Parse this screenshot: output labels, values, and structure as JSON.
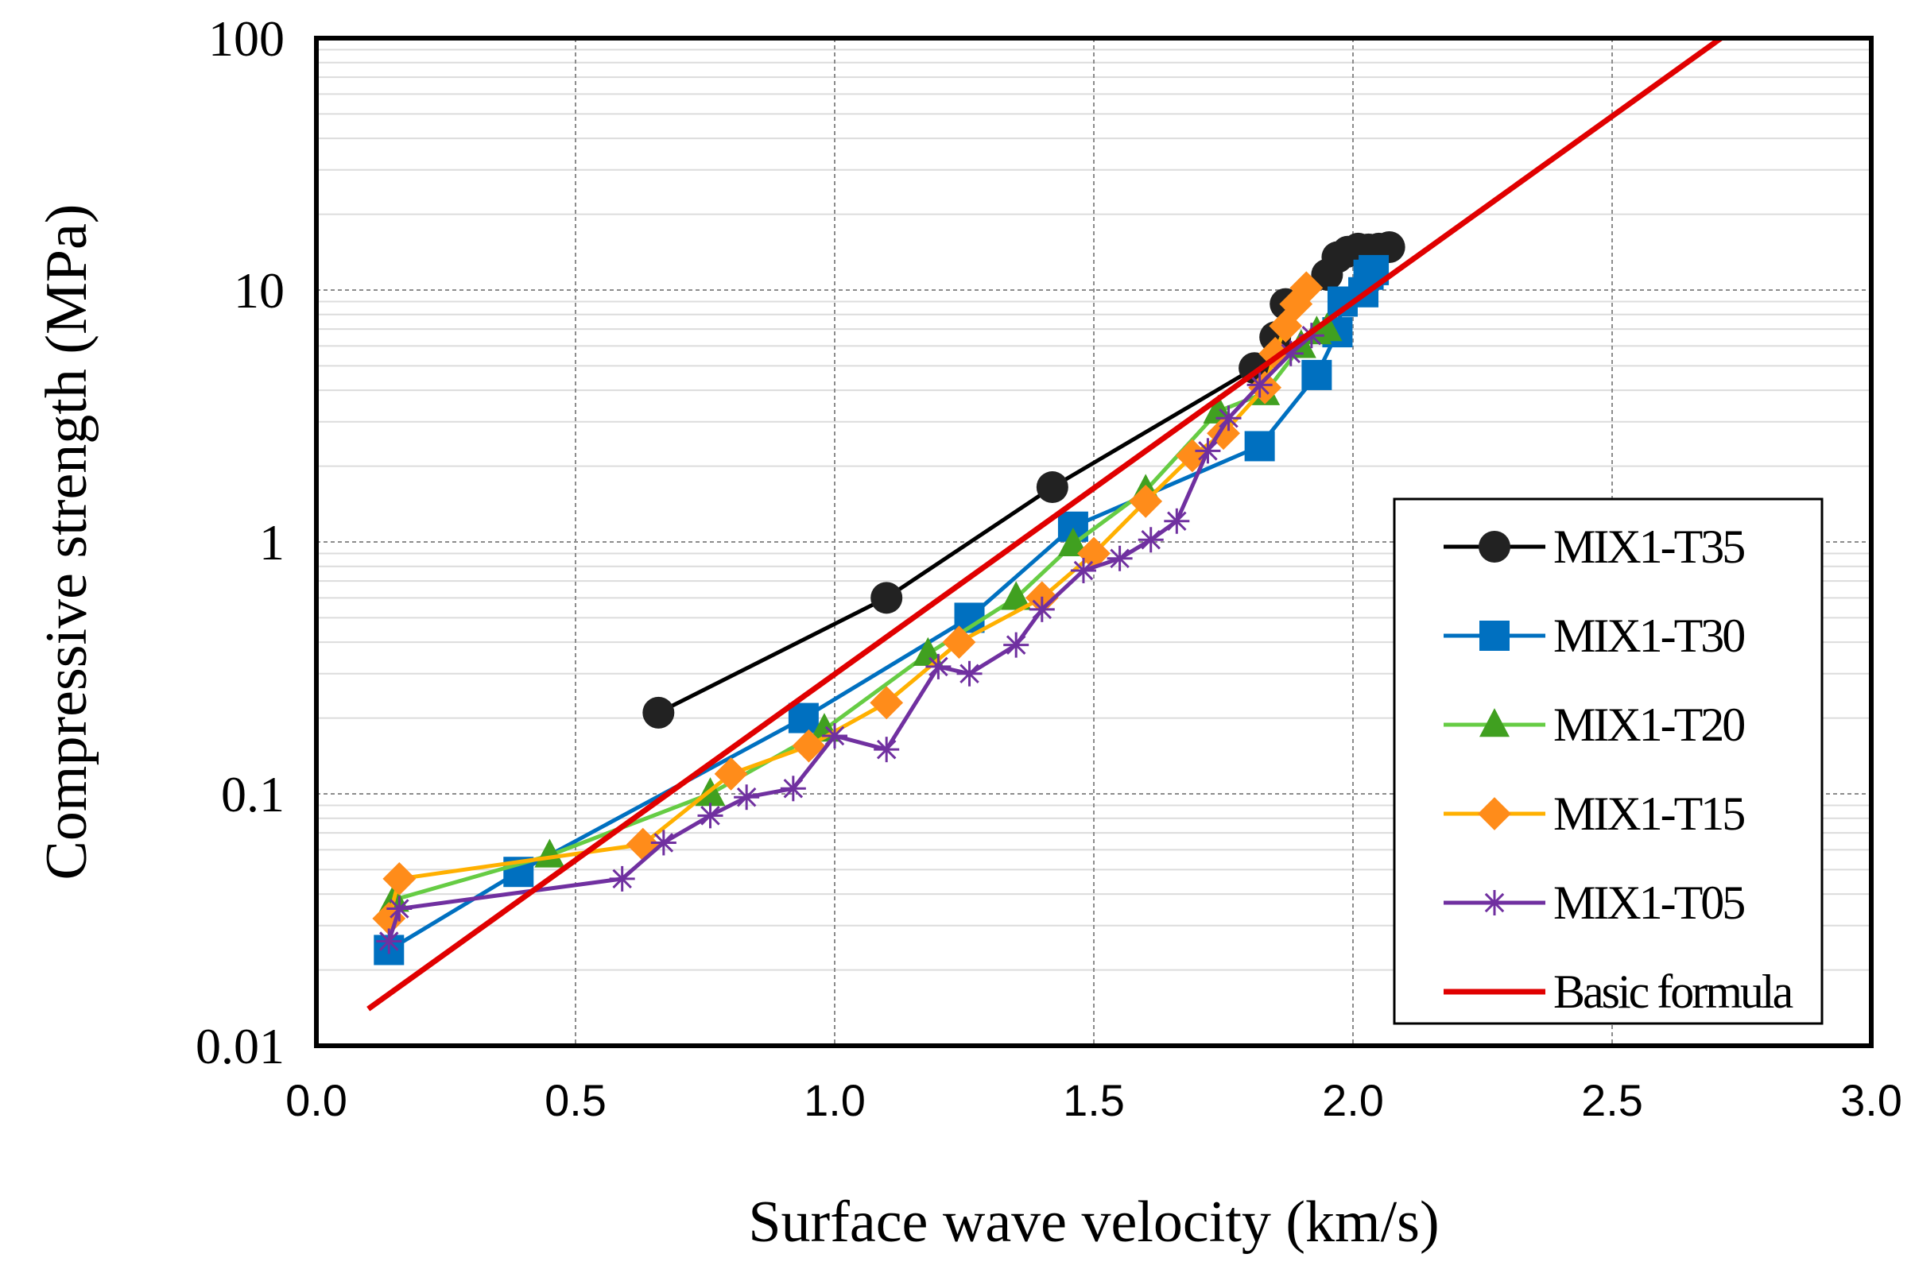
{
  "chart_data": {
    "type": "line",
    "title": "",
    "xlabel": "Surface wave velocity (km/s)",
    "ylabel": "Compressive strength (MPa)",
    "xlim": [
      0.0,
      3.0
    ],
    "ylim": [
      0.01,
      100
    ],
    "yscale": "log",
    "grid": true,
    "legend_position": "lower-right",
    "x_ticks": [
      "0.0",
      "0.5",
      "1.0",
      "1.5",
      "2.0",
      "2.5",
      "3.0"
    ],
    "y_ticks": [
      "0.01",
      "0.1",
      "1",
      "10",
      "100"
    ],
    "series": [
      {
        "name": "MIX1-T35",
        "color": "#000000",
        "line_color": "#000000",
        "marker": "circle",
        "fill": "#222222",
        "points": [
          [
            0.66,
            0.21
          ],
          [
            1.1,
            0.6
          ],
          [
            1.42,
            1.65
          ],
          [
            1.81,
            4.9
          ],
          [
            1.85,
            6.5
          ],
          [
            1.87,
            8.8
          ],
          [
            1.95,
            11.5
          ],
          [
            1.97,
            13.5
          ],
          [
            1.99,
            14.2
          ],
          [
            2.01,
            14.6
          ],
          [
            2.03,
            14.5
          ],
          [
            2.05,
            14.6
          ],
          [
            2.07,
            14.8
          ]
        ]
      },
      {
        "name": "MIX1-T30",
        "color": "#0070C0",
        "line_color": "#0070C0",
        "marker": "square",
        "fill": "#0070C0",
        "points": [
          [
            0.14,
            0.024
          ],
          [
            0.39,
            0.049
          ],
          [
            0.94,
            0.2
          ],
          [
            1.26,
            0.5
          ],
          [
            1.46,
            1.15
          ],
          [
            1.82,
            2.4
          ],
          [
            1.93,
            4.6
          ],
          [
            1.97,
            6.8
          ],
          [
            1.98,
            9.0
          ],
          [
            2.02,
            9.8
          ],
          [
            2.03,
            11.5
          ],
          [
            2.04,
            12.0
          ]
        ]
      },
      {
        "name": "MIX1-T20",
        "color": "#40A020",
        "line_color": "#66CC44",
        "marker": "triangle",
        "fill": "#40A020",
        "points": [
          [
            0.15,
            0.038
          ],
          [
            0.45,
            0.057
          ],
          [
            0.76,
            0.1
          ],
          [
            0.98,
            0.18
          ],
          [
            1.18,
            0.36
          ],
          [
            1.35,
            0.6
          ],
          [
            1.46,
            0.98
          ],
          [
            1.6,
            1.6
          ],
          [
            1.74,
            3.3
          ],
          [
            1.83,
            3.9
          ],
          [
            1.9,
            6.0
          ],
          [
            1.93,
            6.8
          ],
          [
            1.95,
            7.0
          ]
        ]
      },
      {
        "name": "MIX1-T15",
        "color": "#FF8C1A",
        "line_color": "#FFB000",
        "marker": "diamond",
        "fill": "#FF8C1A",
        "points": [
          [
            0.14,
            0.032
          ],
          [
            0.16,
            0.046
          ],
          [
            0.63,
            0.063
          ],
          [
            0.8,
            0.12
          ],
          [
            0.95,
            0.155
          ],
          [
            1.1,
            0.23
          ],
          [
            1.24,
            0.4
          ],
          [
            1.4,
            0.6
          ],
          [
            1.5,
            0.9
          ],
          [
            1.6,
            1.45
          ],
          [
            1.69,
            2.2
          ],
          [
            1.75,
            2.7
          ],
          [
            1.83,
            4.1
          ],
          [
            1.85,
            5.6
          ],
          [
            1.87,
            7.2
          ],
          [
            1.89,
            8.8
          ],
          [
            1.91,
            10.2
          ]
        ]
      },
      {
        "name": "MIX1-T05",
        "color": "#7030A0",
        "line_color": "#7030A0",
        "marker": "asterisk",
        "fill": "#7030A0",
        "points": [
          [
            0.14,
            0.026
          ],
          [
            0.16,
            0.035
          ],
          [
            0.59,
            0.046
          ],
          [
            0.67,
            0.064
          ],
          [
            0.76,
            0.082
          ],
          [
            0.83,
            0.097
          ],
          [
            0.92,
            0.105
          ],
          [
            1.0,
            0.17
          ],
          [
            1.1,
            0.15
          ],
          [
            1.2,
            0.32
          ],
          [
            1.26,
            0.3
          ],
          [
            1.35,
            0.39
          ],
          [
            1.4,
            0.54
          ],
          [
            1.48,
            0.77
          ],
          [
            1.55,
            0.86
          ],
          [
            1.61,
            1.02
          ],
          [
            1.66,
            1.21
          ],
          [
            1.72,
            2.3
          ],
          [
            1.76,
            3.1
          ],
          [
            1.82,
            4.2
          ],
          [
            1.88,
            5.6
          ],
          [
            1.92,
            6.6
          ]
        ]
      },
      {
        "name": "Basic formula",
        "color": "#E00000",
        "line_color": "#E00000",
        "marker": "none",
        "fill": "#E00000",
        "points": [
          [
            0.1,
            0.014
          ],
          [
            2.71,
            100
          ]
        ]
      }
    ]
  }
}
